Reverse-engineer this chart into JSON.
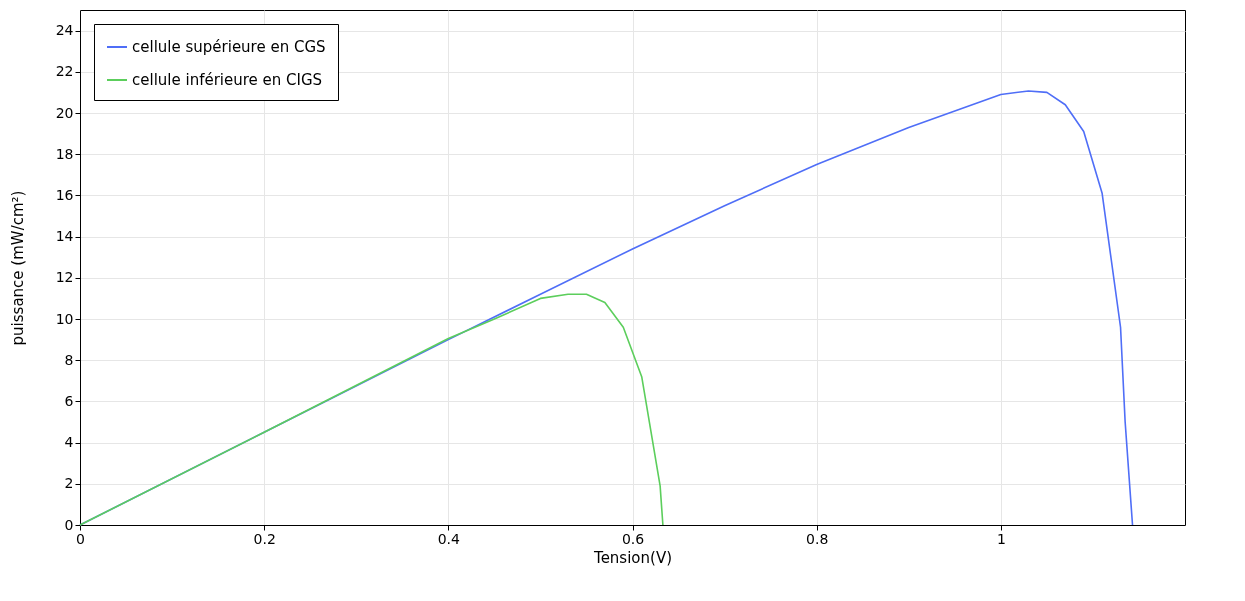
{
  "chart_data": {
    "type": "line",
    "xlabel": "Tension(V)",
    "ylabel": "puissance (mW/cm²)",
    "xlim": [
      0,
      1.2
    ],
    "xticks": [
      0,
      0.2,
      0.4,
      0.6,
      0.8,
      1
    ],
    "ylim": [
      0,
      25
    ],
    "yticks": [
      0,
      2,
      4,
      6,
      8,
      10,
      12,
      14,
      16,
      18,
      20,
      22,
      24
    ],
    "grid": true,
    "legend": "top left",
    "marker": "none",
    "line_style": "solid",
    "series": [
      {
        "name": "cellule supérieure en CGS",
        "color": "#4f6ef7",
        "x": [
          0,
          0.2,
          0.4,
          0.5,
          0.6,
          0.7,
          0.8,
          0.9,
          1.0,
          1.03,
          1.05,
          1.07,
          1.09,
          1.11,
          1.13,
          1.135,
          1.143
        ],
        "values": [
          0,
          4.5,
          9.0,
          11.2,
          13.4,
          15.5,
          17.5,
          19.3,
          20.9,
          21.07,
          21.0,
          20.4,
          19.1,
          16.1,
          9.6,
          5.0,
          0
        ]
      },
      {
        "name": "cellule inférieure en CIGS",
        "color": "#5cce5c",
        "x": [
          0,
          0.2,
          0.4,
          0.45,
          0.5,
          0.53,
          0.55,
          0.57,
          0.59,
          0.61,
          0.63,
          0.633
        ],
        "values": [
          0,
          4.5,
          9.05,
          10.0,
          11.0,
          11.2,
          11.2,
          10.8,
          9.6,
          7.2,
          1.9,
          0
        ]
      }
    ]
  }
}
